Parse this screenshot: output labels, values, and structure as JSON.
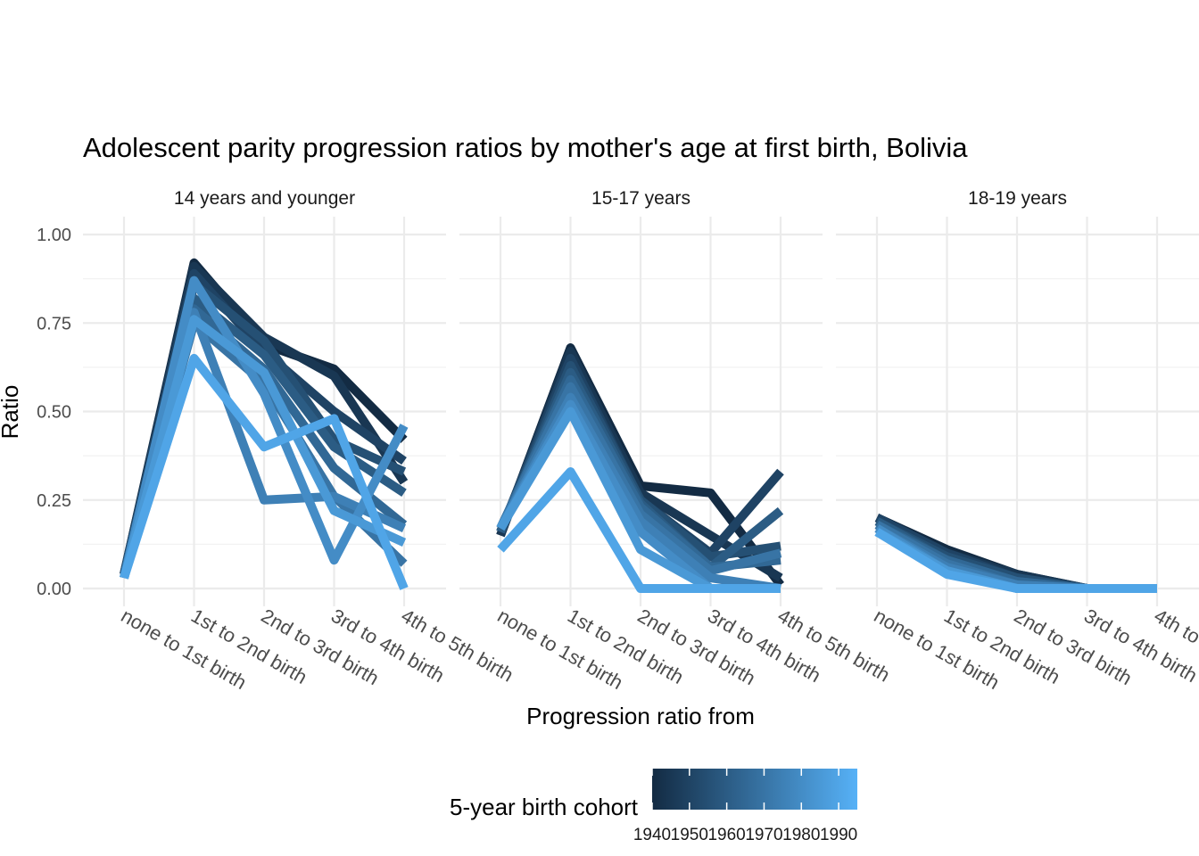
{
  "chart_data": {
    "type": "line",
    "title": "Adolescent parity progression ratios by mother's age at first birth,  Bolivia",
    "xlabel": "Progression ratio from",
    "ylabel": "Ratio",
    "categories": [
      "none to 1st birth",
      "1st to 2nd birth",
      "2nd to 3rd birth",
      "3rd to 4th birth",
      "4th to 5th birth"
    ],
    "ylim": [
      0,
      1
    ],
    "yticks": [
      "0.00",
      "0.25",
      "0.50",
      "0.75",
      "1.00"
    ],
    "grid": true,
    "legend": {
      "title": "5-year birth cohort",
      "position": "bottom",
      "labels": [
        "1940",
        "1950",
        "1960",
        "1970",
        "1980",
        "1990"
      ],
      "range": [
        1940,
        1995
      ],
      "color_low": "#132B43",
      "color_high": "#56B1F7"
    },
    "panels": [
      {
        "label": "14 years and younger",
        "series": [
          {
            "cohort": 1940,
            "values": [
              0.04,
              0.92,
              0.69,
              0.62,
              0.42
            ]
          },
          {
            "cohort": 1945,
            "values": [
              0.04,
              0.91,
              0.71,
              0.6,
              0.3
            ]
          },
          {
            "cohort": 1950,
            "values": [
              0.04,
              0.89,
              0.67,
              0.5,
              0.36
            ]
          },
          {
            "cohort": 1955,
            "values": [
              0.04,
              0.86,
              0.7,
              0.42,
              0.33
            ]
          },
          {
            "cohort": 1960,
            "values": [
              0.03,
              0.82,
              0.66,
              0.4,
              0.27
            ]
          },
          {
            "cohort": 1965,
            "values": [
              0.03,
              0.79,
              0.62,
              0.34,
              0.18
            ]
          },
          {
            "cohort": 1970,
            "values": [
              0.03,
              0.75,
              0.58,
              0.26,
              0.07
            ]
          },
          {
            "cohort": 1975,
            "values": [
              0.03,
              0.78,
              0.25,
              0.26,
              0.17
            ]
          },
          {
            "cohort": 1980,
            "values": [
              0.03,
              0.87,
              0.55,
              0.08,
              0.46
            ]
          },
          {
            "cohort": 1985,
            "values": [
              0.03,
              0.76,
              0.61,
              0.22,
              0.13
            ]
          },
          {
            "cohort": 1990,
            "values": [
              0.03,
              0.65,
              0.4,
              0.48,
              0.0
            ]
          }
        ]
      },
      {
        "label": "15-17 years",
        "series": [
          {
            "cohort": 1940,
            "values": [
              0.15,
              0.68,
              0.29,
              0.27,
              0.01
            ]
          },
          {
            "cohort": 1945,
            "values": [
              0.15,
              0.67,
              0.27,
              0.15,
              0.03
            ]
          },
          {
            "cohort": 1950,
            "values": [
              0.16,
              0.65,
              0.25,
              0.1,
              0.33
            ]
          },
          {
            "cohort": 1955,
            "values": [
              0.16,
              0.63,
              0.25,
              0.09,
              0.12
            ]
          },
          {
            "cohort": 1960,
            "values": [
              0.16,
              0.61,
              0.24,
              0.06,
              0.22
            ]
          },
          {
            "cohort": 1965,
            "values": [
              0.17,
              0.59,
              0.23,
              0.06,
              0.08
            ]
          },
          {
            "cohort": 1970,
            "values": [
              0.17,
              0.57,
              0.21,
              0.05,
              0.1
            ]
          },
          {
            "cohort": 1975,
            "values": [
              0.17,
              0.54,
              0.19,
              0.03,
              0.0
            ]
          },
          {
            "cohort": 1980,
            "values": [
              0.17,
              0.52,
              0.16,
              0.0,
              0.0
            ]
          },
          {
            "cohort": 1985,
            "values": [
              0.17,
              0.5,
              0.11,
              0.0,
              0.0
            ]
          },
          {
            "cohort": 1990,
            "values": [
              0.11,
              0.33,
              0.0,
              0.0,
              0.0
            ]
          }
        ]
      },
      {
        "label": "18-19 years",
        "series": [
          {
            "cohort": 1940,
            "values": [
              0.2,
              0.11,
              0.04,
              0.0,
              0.0
            ]
          },
          {
            "cohort": 1945,
            "values": [
              0.2,
              0.1,
              0.04,
              0.0,
              0.0
            ]
          },
          {
            "cohort": 1950,
            "values": [
              0.2,
              0.1,
              0.03,
              0.0,
              0.0
            ]
          },
          {
            "cohort": 1955,
            "values": [
              0.19,
              0.09,
              0.03,
              0.0,
              0.0
            ]
          },
          {
            "cohort": 1960,
            "values": [
              0.19,
              0.08,
              0.02,
              0.0,
              0.0
            ]
          },
          {
            "cohort": 1965,
            "values": [
              0.18,
              0.08,
              0.02,
              0.0,
              0.0
            ]
          },
          {
            "cohort": 1970,
            "values": [
              0.18,
              0.07,
              0.01,
              0.0,
              0.0
            ]
          },
          {
            "cohort": 1975,
            "values": [
              0.17,
              0.06,
              0.01,
              0.0,
              0.0
            ]
          },
          {
            "cohort": 1980,
            "values": [
              0.17,
              0.05,
              0.0,
              0.0,
              0.0
            ]
          },
          {
            "cohort": 1985,
            "values": [
              0.16,
              0.05,
              0.0,
              0.0,
              0.0
            ]
          },
          {
            "cohort": 1990,
            "values": [
              0.16,
              0.04,
              0.0,
              0.0,
              0.0
            ]
          }
        ]
      }
    ]
  }
}
